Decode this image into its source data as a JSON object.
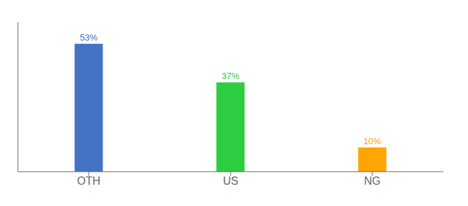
{
  "chart_data": {
    "type": "bar",
    "categories": [
      "OTH",
      "US",
      "NG"
    ],
    "values": [
      53,
      37,
      10
    ],
    "value_labels": [
      "53%",
      "37%",
      "10%"
    ],
    "colors": [
      "#4472C4",
      "#2ECC40",
      "#FFA500"
    ],
    "ylim": [
      0,
      62
    ],
    "data_labels": true,
    "tick_labels": "x",
    "grid": false
  }
}
